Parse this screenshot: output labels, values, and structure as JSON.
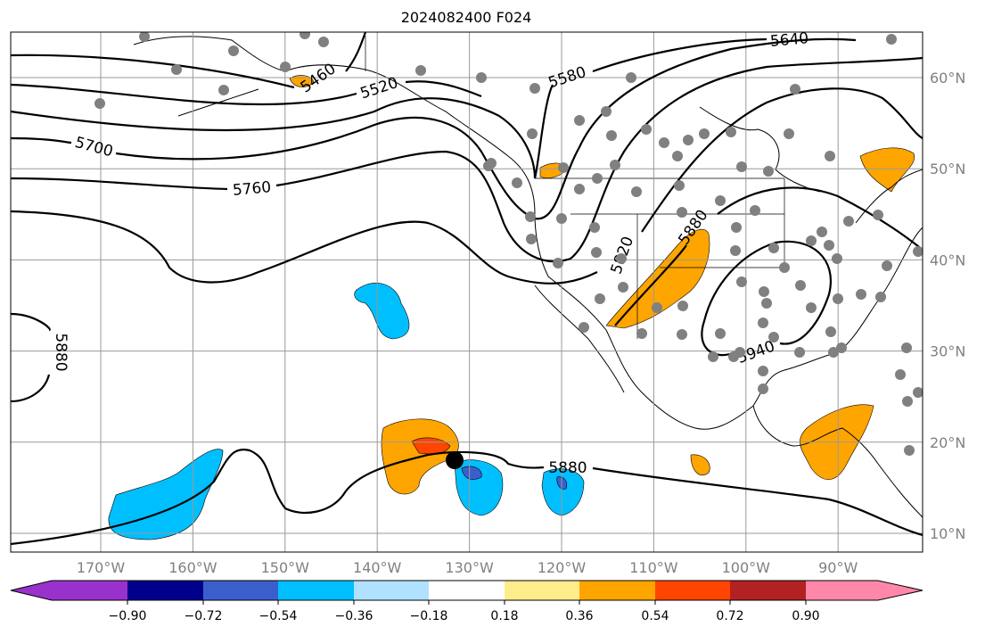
{
  "title": "2024082400 F024",
  "map": {
    "projection": "plate carree",
    "lon_range": [
      -180,
      -81
    ],
    "lat_range": [
      8,
      65
    ],
    "lon_ticks": [
      {
        "value": -170,
        "label": "170°W"
      },
      {
        "value": -160,
        "label": "160°W"
      },
      {
        "value": -150,
        "label": "150°W"
      },
      {
        "value": -140,
        "label": "140°W"
      },
      {
        "value": -130,
        "label": "130°W"
      },
      {
        "value": -120,
        "label": "120°W"
      },
      {
        "value": -110,
        "label": "110°W"
      },
      {
        "value": -100,
        "label": "100°W"
      },
      {
        "value": -90,
        "label": "90°W"
      }
    ],
    "lat_ticks": [
      {
        "value": 60,
        "label": "60°N"
      },
      {
        "value": 50,
        "label": "50°N"
      },
      {
        "value": 40,
        "label": "40°N"
      },
      {
        "value": 30,
        "label": "30°N"
      },
      {
        "value": 20,
        "label": "20°N"
      },
      {
        "value": 10,
        "label": "10°N"
      }
    ],
    "contour_labels": [
      "5460",
      "5520",
      "5580",
      "5640",
      "5700",
      "5760",
      "5820",
      "5880",
      "5880",
      "5880",
      "5940"
    ],
    "colors": {
      "station": "#808080",
      "contour": "#000000",
      "grid": "#999999"
    }
  },
  "colorbar": {
    "ticks": [
      "−0.90",
      "−0.72",
      "−0.54",
      "−0.36",
      "−0.18",
      "0.18",
      "0.36",
      "0.54",
      "0.72",
      "0.90"
    ],
    "colors": [
      "#9932CC",
      "#00008B",
      "#3A5FCD",
      "#00BFFF",
      "#B0E2FF",
      "#FFFFFF",
      "#FFEC8B",
      "#FFA500",
      "#FF4500",
      "#B22222",
      "#FF88AA"
    ]
  }
}
